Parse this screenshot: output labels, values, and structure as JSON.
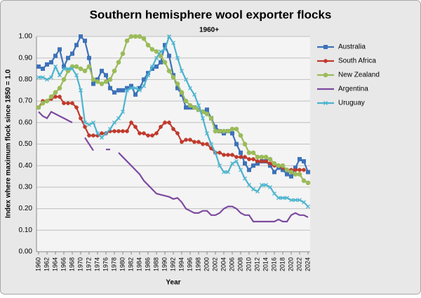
{
  "chart_data": {
    "type": "line",
    "title": "Southern hemisphere wool exporter flocks",
    "subtitle": "1960+",
    "x_label": "Year",
    "y_label": "Index where maximum flock since 1850 = 1.0",
    "x": [
      1960,
      1961,
      1962,
      1963,
      1964,
      1965,
      1966,
      1967,
      1968,
      1969,
      1970,
      1971,
      1972,
      1973,
      1974,
      1975,
      1976,
      1977,
      1978,
      1979,
      1980,
      1981,
      1982,
      1983,
      1984,
      1985,
      1986,
      1987,
      1988,
      1989,
      1990,
      1991,
      1992,
      1993,
      1994,
      1995,
      1996,
      1997,
      1998,
      1999,
      2000,
      2001,
      2002,
      2003,
      2004,
      2005,
      2006,
      2007,
      2008,
      2009,
      2010,
      2011,
      2012,
      2013,
      2014,
      2015,
      2016,
      2017,
      2018,
      2019,
      2020,
      2021,
      2022,
      2023,
      2024
    ],
    "xlim": [
      1959.5,
      2024.5
    ],
    "xticks": [
      1960,
      1962,
      1964,
      1966,
      1968,
      1970,
      1972,
      1974,
      1976,
      1978,
      1980,
      1982,
      1984,
      1986,
      1988,
      1990,
      1992,
      1994,
      1996,
      1998,
      2000,
      2002,
      2004,
      2006,
      2008,
      2010,
      2012,
      2014,
      2016,
      2018,
      2020,
      2022,
      2024
    ],
    "ylim": [
      0,
      1
    ],
    "yticks": [
      {
        "value": 0,
        "label": "0.00"
      },
      {
        "value": 0.1,
        "label": "0.10"
      },
      {
        "value": 0.2,
        "label": "0.20"
      },
      {
        "value": 0.3,
        "label": "0.30"
      },
      {
        "value": 0.4,
        "label": "0.40"
      },
      {
        "value": 0.5,
        "label": "0.50"
      },
      {
        "value": 0.6,
        "label": "0.60"
      },
      {
        "value": 0.7,
        "label": "0.70"
      },
      {
        "value": 0.8,
        "label": "0.80"
      },
      {
        "value": 0.9,
        "label": "0.90"
      },
      {
        "value": 1,
        "label": "1.00"
      }
    ],
    "grid": true,
    "legend": "right",
    "series": [
      {
        "name": "Australia",
        "color": "#3d72b8",
        "marker": "square",
        "values": [
          0.86,
          0.85,
          0.87,
          0.88,
          0.91,
          0.94,
          0.86,
          0.9,
          0.92,
          0.96,
          1.0,
          0.98,
          0.9,
          0.78,
          0.8,
          0.84,
          0.82,
          0.76,
          0.74,
          0.75,
          0.75,
          0.76,
          0.77,
          0.73,
          0.76,
          0.8,
          0.83,
          0.85,
          0.86,
          0.88,
          0.96,
          0.91,
          0.82,
          0.76,
          0.73,
          0.67,
          0.67,
          0.67,
          0.66,
          0.65,
          0.66,
          0.62,
          0.58,
          0.56,
          0.55,
          0.56,
          0.55,
          0.5,
          0.46,
          0.41,
          0.38,
          0.4,
          0.41,
          0.42,
          0.42,
          0.4,
          0.37,
          0.39,
          0.38,
          0.36,
          0.35,
          0.39,
          0.43,
          0.42,
          0.37
        ]
      },
      {
        "name": "South Africa",
        "color": "#c0392b",
        "marker": "star",
        "values": [
          0.67,
          0.7,
          0.7,
          0.71,
          0.72,
          0.72,
          0.69,
          0.69,
          0.69,
          0.67,
          0.62,
          0.58,
          0.54,
          0.54,
          0.54,
          0.55,
          0.55,
          0.56,
          0.56,
          0.56,
          0.56,
          0.56,
          0.6,
          0.58,
          0.55,
          0.55,
          0.54,
          0.54,
          0.55,
          0.58,
          0.6,
          0.6,
          0.57,
          0.55,
          0.51,
          0.52,
          0.52,
          0.51,
          0.51,
          0.5,
          0.5,
          0.48,
          0.46,
          0.46,
          0.45,
          0.45,
          0.45,
          0.44,
          0.44,
          0.44,
          0.43,
          0.43,
          0.42,
          0.42,
          0.42,
          0.41,
          0.4,
          0.4,
          0.39,
          0.38,
          0.38,
          0.38,
          0.38,
          0.38,
          null
        ]
      },
      {
        "name": "New Zealand",
        "color": "#9bbb59",
        "marker": "circle",
        "values": [
          0.67,
          0.69,
          0.7,
          0.72,
          0.74,
          0.76,
          0.8,
          0.84,
          0.86,
          0.86,
          0.85,
          0.84,
          0.86,
          0.8,
          0.79,
          0.78,
          0.79,
          0.8,
          0.84,
          0.88,
          0.92,
          0.98,
          1.0,
          1.0,
          1.0,
          0.99,
          0.96,
          0.94,
          0.93,
          0.91,
          0.88,
          0.84,
          0.81,
          0.78,
          0.74,
          0.7,
          0.68,
          0.67,
          0.66,
          0.65,
          0.64,
          0.62,
          0.56,
          0.56,
          0.56,
          0.56,
          0.57,
          0.57,
          0.54,
          0.5,
          0.46,
          0.46,
          0.44,
          0.44,
          0.44,
          0.43,
          0.41,
          0.4,
          0.4,
          0.38,
          0.37,
          0.36,
          0.36,
          0.33,
          0.32
        ]
      },
      {
        "name": "Argentina",
        "color": "#7d4aa0",
        "marker": "none",
        "values": [
          0.65,
          0.63,
          0.62,
          0.65,
          0.64,
          0.63,
          0.62,
          0.61,
          0.6,
          null,
          null,
          0.53,
          0.5,
          0.47,
          null,
          null,
          0.475,
          0.475,
          null,
          0.46,
          0.44,
          0.42,
          0.4,
          0.38,
          0.36,
          0.33,
          0.31,
          0.29,
          0.27,
          0.265,
          0.26,
          0.255,
          0.245,
          0.25,
          0.23,
          0.2,
          0.19,
          0.18,
          0.18,
          0.19,
          0.19,
          0.17,
          0.17,
          0.18,
          0.2,
          0.21,
          0.21,
          0.2,
          0.18,
          0.17,
          0.17,
          0.14,
          0.14,
          0.14,
          0.14,
          0.14,
          0.14,
          0.15,
          0.14,
          0.14,
          0.17,
          0.18,
          0.17,
          0.17,
          0.16
        ]
      },
      {
        "name": "Uruguay",
        "color": "#4bb4cf",
        "marker": "x",
        "values": [
          0.81,
          0.81,
          0.8,
          0.81,
          0.86,
          0.82,
          0.85,
          0.85,
          0.85,
          0.82,
          0.75,
          0.6,
          0.59,
          0.6,
          0.55,
          0.53,
          0.55,
          0.57,
          0.6,
          0.62,
          0.65,
          0.75,
          0.76,
          0.76,
          0.75,
          0.77,
          0.82,
          0.86,
          0.9,
          0.93,
          0.94,
          1.0,
          0.97,
          0.9,
          0.84,
          0.8,
          0.76,
          0.73,
          0.68,
          0.62,
          0.55,
          0.5,
          0.46,
          0.4,
          0.37,
          0.37,
          0.41,
          0.42,
          0.38,
          0.34,
          0.31,
          0.29,
          0.28,
          0.31,
          0.31,
          0.3,
          0.27,
          0.25,
          0.25,
          0.25,
          0.24,
          0.24,
          0.24,
          0.23,
          0.21
        ]
      }
    ]
  }
}
